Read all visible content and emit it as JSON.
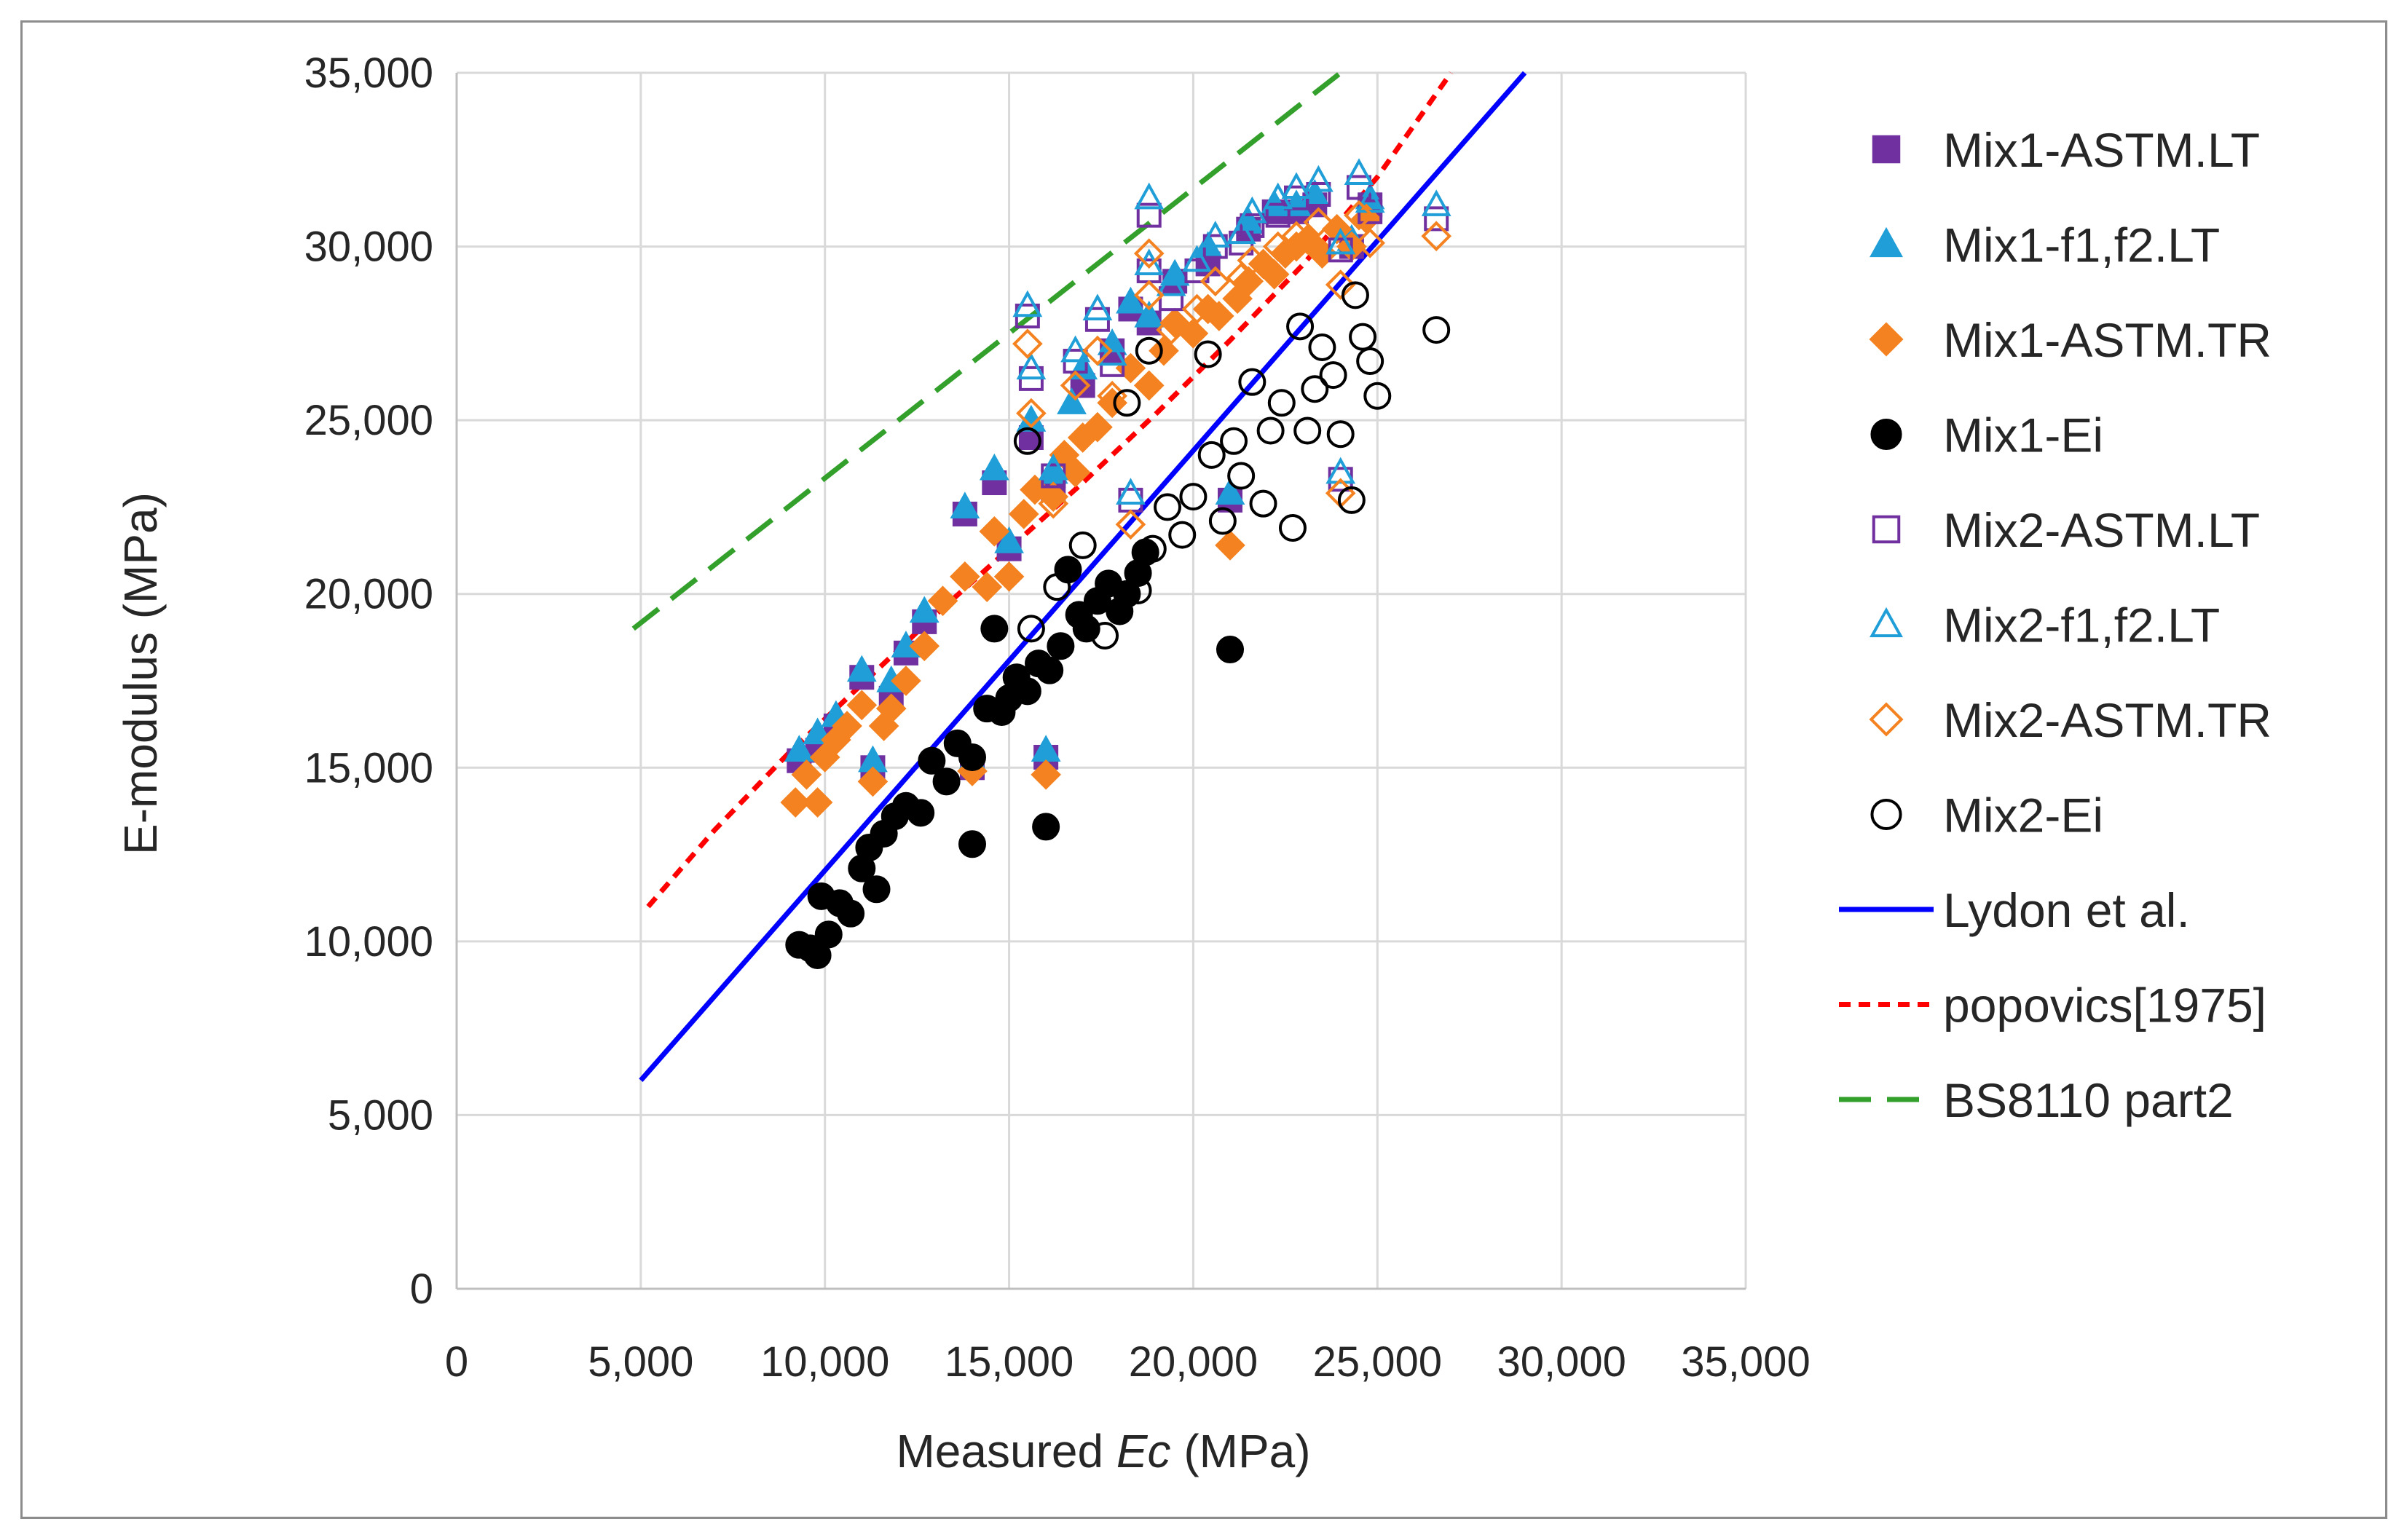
{
  "chart_data": {
    "type": "scatter",
    "title": "",
    "xlabel_prefix": "Measured ",
    "xlabel_italic": "Ec",
    "xlabel_suffix": " (MPa)",
    "ylabel": "E-modulus (MPa)",
    "xlim": [
      0,
      35000
    ],
    "ylim": [
      0,
      35000
    ],
    "x_ticks": [
      0,
      5000,
      10000,
      15000,
      20000,
      25000,
      30000,
      35000
    ],
    "y_ticks": [
      0,
      5000,
      10000,
      15000,
      20000,
      25000,
      30000,
      35000
    ],
    "x_tick_labels": [
      "0",
      "5,000",
      "10,000",
      "15,000",
      "20,000",
      "25,000",
      "30,000",
      "35,000"
    ],
    "y_tick_labels": [
      "0",
      "5,000",
      "10,000",
      "15,000",
      "20,000",
      "25,000",
      "30,000",
      "35,000"
    ],
    "grid": "vertical and horizontal major gridlines",
    "legend_position": "right",
    "colors": {
      "purple": "#7030a0",
      "cyan": "#1f9ed8",
      "orange": "#f58220",
      "black": "#000000",
      "blue": "#0000ff",
      "red": "#ff0000",
      "green": "#33a02c"
    },
    "series": [
      {
        "name": "Mix1-ASTM.LT",
        "marker": "square-filled",
        "color": "#7030a0",
        "points": [
          [
            9300,
            15200
          ],
          [
            9800,
            15500
          ],
          [
            10300,
            16200
          ],
          [
            11000,
            17600
          ],
          [
            11300,
            15000
          ],
          [
            11800,
            17000
          ],
          [
            12200,
            18300
          ],
          [
            12700,
            19200
          ],
          [
            13800,
            22300
          ],
          [
            14000,
            15000
          ],
          [
            14600,
            23200
          ],
          [
            15000,
            21300
          ],
          [
            15600,
            24500
          ],
          [
            16000,
            15300
          ],
          [
            16200,
            23000
          ],
          [
            17000,
            26000
          ],
          [
            17800,
            27000
          ],
          [
            18300,
            28200
          ],
          [
            18800,
            27800
          ],
          [
            19500,
            29000
          ],
          [
            20400,
            29500
          ],
          [
            21000,
            22700
          ],
          [
            21500,
            30500
          ],
          [
            22200,
            31000
          ],
          [
            22800,
            31000
          ],
          [
            23300,
            31200
          ],
          [
            24300,
            30000
          ],
          [
            24800,
            31200
          ]
        ]
      },
      {
        "name": "Mix1-f1,f2.LT",
        "marker": "triangle-filled",
        "color": "#1f9ed8",
        "points": [
          [
            9300,
            15500
          ],
          [
            9800,
            16000
          ],
          [
            10300,
            16500
          ],
          [
            11000,
            17800
          ],
          [
            11300,
            15200
          ],
          [
            11800,
            17500
          ],
          [
            12200,
            18500
          ],
          [
            12700,
            19500
          ],
          [
            13800,
            22500
          ],
          [
            14000,
            15200
          ],
          [
            14600,
            23600
          ],
          [
            15000,
            21500
          ],
          [
            15600,
            25000
          ],
          [
            16000,
            15500
          ],
          [
            16200,
            23500
          ],
          [
            16700,
            25500
          ],
          [
            17000,
            26500
          ],
          [
            17800,
            27200
          ],
          [
            18300,
            28400
          ],
          [
            18800,
            28000
          ],
          [
            19500,
            29200
          ],
          [
            20400,
            30000
          ],
          [
            21000,
            22900
          ],
          [
            21500,
            30700
          ],
          [
            22200,
            31200
          ],
          [
            22800,
            31200
          ],
          [
            23300,
            31500
          ],
          [
            24300,
            30200
          ],
          [
            24800,
            31400
          ]
        ]
      },
      {
        "name": "Mix1-ASTM.TR",
        "marker": "diamond-filled",
        "color": "#f58220",
        "points": [
          [
            9200,
            14000
          ],
          [
            9500,
            14800
          ],
          [
            9800,
            14000
          ],
          [
            10000,
            15300
          ],
          [
            10300,
            15800
          ],
          [
            10600,
            16200
          ],
          [
            11000,
            16800
          ],
          [
            11300,
            14600
          ],
          [
            11600,
            16200
          ],
          [
            11800,
            16700
          ],
          [
            12200,
            17500
          ],
          [
            12700,
            18500
          ],
          [
            13200,
            19800
          ],
          [
            13800,
            20500
          ],
          [
            14000,
            14900
          ],
          [
            14400,
            20200
          ],
          [
            14600,
            21800
          ],
          [
            15000,
            20500
          ],
          [
            15400,
            22300
          ],
          [
            15700,
            23000
          ],
          [
            16000,
            14800
          ],
          [
            16200,
            22800
          ],
          [
            16500,
            24000
          ],
          [
            16800,
            23500
          ],
          [
            17000,
            24500
          ],
          [
            17400,
            24800
          ],
          [
            17800,
            25500
          ],
          [
            18300,
            26500
          ],
          [
            18800,
            26000
          ],
          [
            19200,
            27000
          ],
          [
            19500,
            27800
          ],
          [
            20000,
            27500
          ],
          [
            20400,
            28200
          ],
          [
            20700,
            28000
          ],
          [
            21000,
            21400
          ],
          [
            21200,
            28500
          ],
          [
            21500,
            29000
          ],
          [
            21900,
            29500
          ],
          [
            22200,
            29200
          ],
          [
            22500,
            29800
          ],
          [
            22800,
            30000
          ],
          [
            23100,
            30200
          ],
          [
            23500,
            29800
          ],
          [
            23900,
            30500
          ],
          [
            24300,
            30000
          ],
          [
            24700,
            30800
          ]
        ]
      },
      {
        "name": "Mix1-Ei",
        "marker": "circle-filled",
        "color": "#000000",
        "points": [
          [
            9300,
            9900
          ],
          [
            9600,
            9800
          ],
          [
            9800,
            9600
          ],
          [
            9900,
            11300
          ],
          [
            10100,
            10200
          ],
          [
            10400,
            11100
          ],
          [
            10700,
            10800
          ],
          [
            11000,
            12100
          ],
          [
            11200,
            12700
          ],
          [
            11400,
            11500
          ],
          [
            11600,
            13100
          ],
          [
            11900,
            13600
          ],
          [
            12200,
            13900
          ],
          [
            12600,
            13700
          ],
          [
            12900,
            15200
          ],
          [
            13300,
            14600
          ],
          [
            13600,
            15700
          ],
          [
            14000,
            15300
          ],
          [
            14000,
            12800
          ],
          [
            14400,
            16700
          ],
          [
            14600,
            19000
          ],
          [
            14800,
            16600
          ],
          [
            15000,
            17000
          ],
          [
            15200,
            17600
          ],
          [
            15500,
            17200
          ],
          [
            15800,
            18000
          ],
          [
            16000,
            13300
          ],
          [
            16100,
            17800
          ],
          [
            16400,
            18500
          ],
          [
            16600,
            20700
          ],
          [
            16900,
            19400
          ],
          [
            17100,
            19000
          ],
          [
            17400,
            19800
          ],
          [
            17700,
            20300
          ],
          [
            18000,
            19500
          ],
          [
            18200,
            20000
          ],
          [
            18500,
            20600
          ],
          [
            18700,
            21200
          ],
          [
            21000,
            18400
          ]
        ]
      },
      {
        "name": "Mix2-ASTM.LT",
        "marker": "square-open",
        "color": "#7030a0",
        "points": [
          [
            15500,
            28000
          ],
          [
            15600,
            26200
          ],
          [
            16200,
            23400
          ],
          [
            16800,
            26700
          ],
          [
            17400,
            27900
          ],
          [
            17800,
            26600
          ],
          [
            18300,
            22700
          ],
          [
            18800,
            30900
          ],
          [
            18800,
            29300
          ],
          [
            19400,
            28500
          ],
          [
            20100,
            29300
          ],
          [
            20600,
            30000
          ],
          [
            21300,
            30100
          ],
          [
            21600,
            30600
          ],
          [
            22300,
            30900
          ],
          [
            22800,
            31400
          ],
          [
            23400,
            31500
          ],
          [
            24000,
            29900
          ],
          [
            24000,
            23300
          ],
          [
            24500,
            31700
          ],
          [
            24800,
            31000
          ],
          [
            26600,
            30800
          ]
        ]
      },
      {
        "name": "Mix2-f1,f2.LT",
        "marker": "triangle-open",
        "color": "#1f9ed8",
        "points": [
          [
            15500,
            28300
          ],
          [
            15600,
            26500
          ],
          [
            16200,
            23600
          ],
          [
            16800,
            27000
          ],
          [
            17400,
            28200
          ],
          [
            17800,
            26900
          ],
          [
            18300,
            22900
          ],
          [
            18800,
            31400
          ],
          [
            18800,
            29500
          ],
          [
            19400,
            28900
          ],
          [
            20100,
            29600
          ],
          [
            20600,
            30300
          ],
          [
            21300,
            30400
          ],
          [
            21600,
            31000
          ],
          [
            22300,
            31400
          ],
          [
            22800,
            31700
          ],
          [
            23400,
            31900
          ],
          [
            24000,
            30100
          ],
          [
            24000,
            23500
          ],
          [
            24500,
            32100
          ],
          [
            24800,
            31300
          ],
          [
            26600,
            31200
          ]
        ]
      },
      {
        "name": "Mix2-ASTM.TR",
        "marker": "diamond-open",
        "color": "#f58220",
        "points": [
          [
            15500,
            27200
          ],
          [
            15600,
            25200
          ],
          [
            16200,
            22600
          ],
          [
            16800,
            26000
          ],
          [
            17400,
            27000
          ],
          [
            17800,
            25700
          ],
          [
            18300,
            22000
          ],
          [
            18800,
            29800
          ],
          [
            18800,
            28600
          ],
          [
            19400,
            27600
          ],
          [
            20100,
            28200
          ],
          [
            20600,
            29000
          ],
          [
            21300,
            29100
          ],
          [
            21600,
            29600
          ],
          [
            22300,
            30000
          ],
          [
            22800,
            30300
          ],
          [
            23400,
            30700
          ],
          [
            24000,
            28900
          ],
          [
            24000,
            22900
          ],
          [
            24500,
            30900
          ],
          [
            24800,
            30100
          ],
          [
            26600,
            30300
          ]
        ]
      },
      {
        "name": "Mix2-Ei",
        "marker": "circle-open",
        "color": "#000000",
        "points": [
          [
            15500,
            24400
          ],
          [
            15600,
            19000
          ],
          [
            16300,
            20200
          ],
          [
            17000,
            21400
          ],
          [
            17600,
            18800
          ],
          [
            18200,
            25500
          ],
          [
            18500,
            20100
          ],
          [
            18800,
            27000
          ],
          [
            18900,
            21300
          ],
          [
            19300,
            22500
          ],
          [
            19700,
            21700
          ],
          [
            20000,
            22800
          ],
          [
            20400,
            26900
          ],
          [
            20500,
            24000
          ],
          [
            20800,
            22100
          ],
          [
            21100,
            24400
          ],
          [
            21300,
            23400
          ],
          [
            21600,
            26100
          ],
          [
            21900,
            22600
          ],
          [
            22100,
            24700
          ],
          [
            22400,
            25500
          ],
          [
            22700,
            21900
          ],
          [
            22900,
            27700
          ],
          [
            23100,
            24700
          ],
          [
            23300,
            25900
          ],
          [
            23500,
            27100
          ],
          [
            23800,
            26300
          ],
          [
            24000,
            24600
          ],
          [
            24300,
            22700
          ],
          [
            24400,
            28600
          ],
          [
            24600,
            27400
          ],
          [
            24800,
            26700
          ],
          [
            25000,
            25700
          ],
          [
            26600,
            27600
          ]
        ]
      }
    ],
    "lines": [
      {
        "name": "Lydon et al.",
        "style": "solid",
        "color": "#0000ff",
        "x": [
          5000,
          29000
        ],
        "y": [
          6000,
          35000
        ]
      },
      {
        "name": "popovics[1975]",
        "style": "short-dash",
        "color": "#ff0000",
        "x": [
          5200,
          7000,
          9000,
          11000,
          13000,
          15000,
          17000,
          19000,
          21000,
          23000,
          25000,
          27000
        ],
        "y": [
          11000,
          13200,
          15400,
          17400,
          19400,
          21300,
          23200,
          25200,
          27300,
          29500,
          32000,
          35000
        ]
      },
      {
        "name": "BS8110 part2",
        "style": "long-dash",
        "color": "#33a02c",
        "x": [
          4800,
          24000
        ],
        "y": [
          19000,
          35000
        ]
      }
    ],
    "legend": [
      "Mix1-ASTM.LT",
      "Mix1-f1,f2.LT",
      "Mix1-ASTM.TR",
      "Mix1-Ei",
      "Mix2-ASTM.LT",
      "Mix2-f1,f2.LT",
      "Mix2-ASTM.TR",
      "Mix2-Ei",
      "Lydon et al.",
      "popovics[1975]",
      "BS8110 part2"
    ]
  }
}
